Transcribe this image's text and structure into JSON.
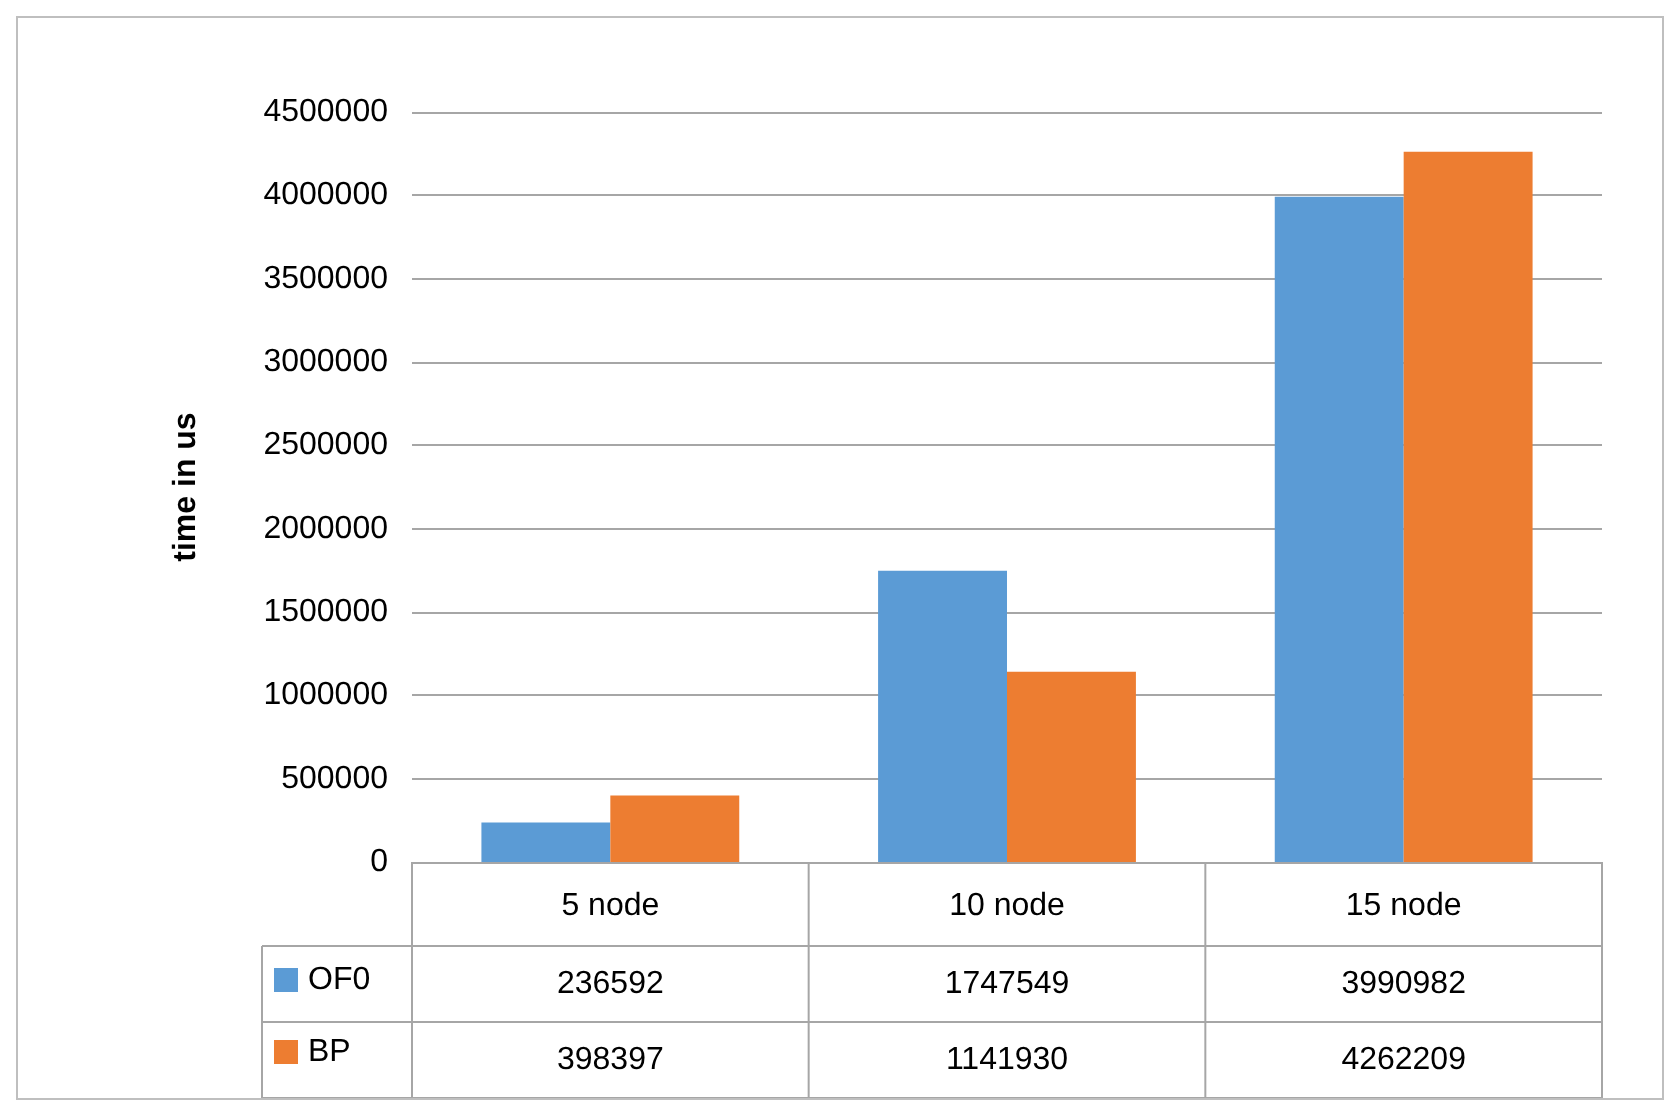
{
  "chart_data": {
    "type": "bar",
    "ylabel": "time in us",
    "categories": [
      "5 node",
      "10 node",
      "15 node"
    ],
    "series": [
      {
        "name": "OF0",
        "color": "#5b9bd5",
        "values": [
          236592,
          1747549,
          3990982
        ]
      },
      {
        "name": "BP",
        "color": "#ed7d31",
        "values": [
          398397,
          1141930,
          4262209
        ]
      }
    ],
    "ylim": [
      0,
      4500000
    ],
    "yticks": [
      0,
      500000,
      1000000,
      1500000,
      2000000,
      2500000,
      3000000,
      3500000,
      4000000,
      4500000
    ],
    "grid": true,
    "legend": "bottom",
    "data_labels": true
  }
}
